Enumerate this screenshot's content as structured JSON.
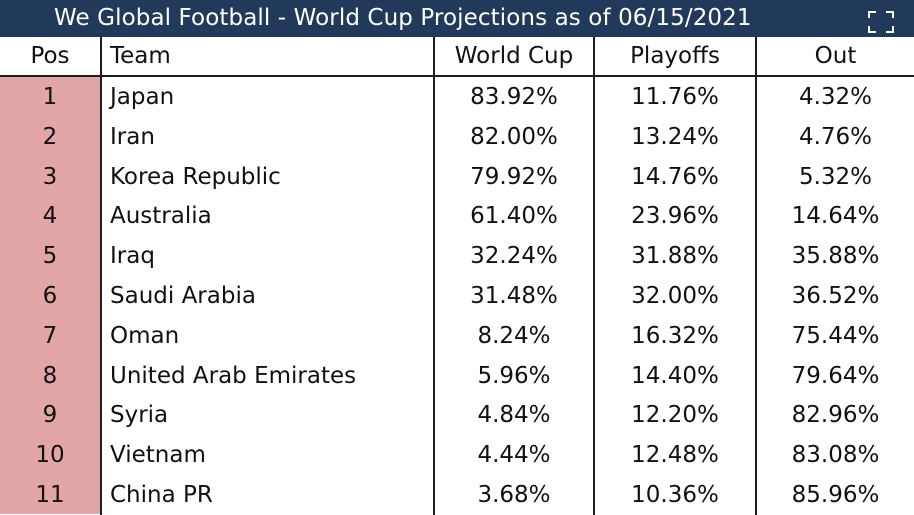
{
  "header": {
    "title": "We Global Football - World Cup Projections as of 06/15/2021",
    "icon": "expand-icon"
  },
  "colors": {
    "title_bg": "#213a5c",
    "pos_column_bg": "#e3a6a6"
  },
  "chart_data": {
    "type": "table",
    "title": "We Global Football - World Cup Projections as of 06/15/2021",
    "columns": [
      "Pos",
      "Team",
      "World Cup",
      "Playoffs",
      "Out"
    ],
    "rows": [
      {
        "pos": "1",
        "team": "Japan",
        "world_cup": "83.92%",
        "playoffs": "11.76%",
        "out": "4.32%"
      },
      {
        "pos": "2",
        "team": "Iran",
        "world_cup": "82.00%",
        "playoffs": "13.24%",
        "out": "4.76%"
      },
      {
        "pos": "3",
        "team": "Korea Republic",
        "world_cup": "79.92%",
        "playoffs": "14.76%",
        "out": "5.32%"
      },
      {
        "pos": "4",
        "team": "Australia",
        "world_cup": "61.40%",
        "playoffs": "23.96%",
        "out": "14.64%"
      },
      {
        "pos": "5",
        "team": "Iraq",
        "world_cup": "32.24%",
        "playoffs": "31.88%",
        "out": "35.88%"
      },
      {
        "pos": "6",
        "team": "Saudi Arabia",
        "world_cup": "31.48%",
        "playoffs": "32.00%",
        "out": "36.52%"
      },
      {
        "pos": "7",
        "team": "Oman",
        "world_cup": "8.24%",
        "playoffs": "16.32%",
        "out": "75.44%"
      },
      {
        "pos": "8",
        "team": "United Arab Emirates",
        "world_cup": "5.96%",
        "playoffs": "14.40%",
        "out": "79.64%"
      },
      {
        "pos": "9",
        "team": "Syria",
        "world_cup": "4.84%",
        "playoffs": "12.20%",
        "out": "82.96%"
      },
      {
        "pos": "10",
        "team": "Vietnam",
        "world_cup": "4.44%",
        "playoffs": "12.48%",
        "out": "83.08%"
      },
      {
        "pos": "11",
        "team": "China PR",
        "world_cup": "3.68%",
        "playoffs": "10.36%",
        "out": "85.96%"
      }
    ]
  }
}
